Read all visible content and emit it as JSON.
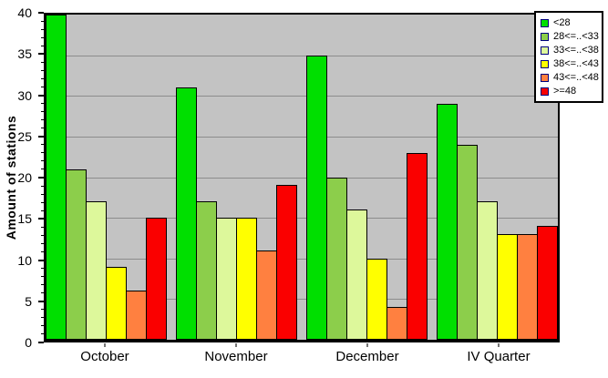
{
  "chart_data": {
    "type": "bar",
    "title": "",
    "xlabel": "",
    "ylabel": "Amount of stations",
    "ylim": [
      0,
      40
    ],
    "y_major_ticks": [
      0,
      5,
      10,
      15,
      20,
      25,
      30,
      35,
      40
    ],
    "y_minor_tick_step": 1,
    "grid": "horizontal-major",
    "legend_position": "top-right",
    "categories": [
      "October",
      "November",
      "December",
      "IV Quarter"
    ],
    "series": [
      {
        "name": "<28",
        "color": "#00DF00",
        "values": [
          40,
          31,
          35,
          29
        ]
      },
      {
        "name": "28<=..<33",
        "color": "#8CCE4B",
        "values": [
          21,
          17,
          20,
          24
        ]
      },
      {
        "name": "33<=..<38",
        "color": "#DDF89B",
        "values": [
          17,
          15,
          16,
          17
        ]
      },
      {
        "name": "38<=..<43",
        "color": "#FFFF00",
        "values": [
          9,
          15,
          10,
          13
        ]
      },
      {
        "name": "43<=..<48",
        "color": "#FF8040",
        "values": [
          6,
          11,
          4,
          13
        ]
      },
      {
        "name": ">=48",
        "color": "#FA0000",
        "values": [
          15,
          19,
          23,
          14
        ]
      }
    ],
    "colors": {
      "page_background": "#FFFFFF",
      "plot_background": "#C3C3C3",
      "grid_line": "#8C8C8C",
      "axis_line": "#000000",
      "bar_border": "#000000",
      "legend_background": "#FFFFFF",
      "legend_border": "#000000",
      "legend_swatch_border": "#000080",
      "text": "#000000",
      "category_tick": "#777777"
    }
  }
}
